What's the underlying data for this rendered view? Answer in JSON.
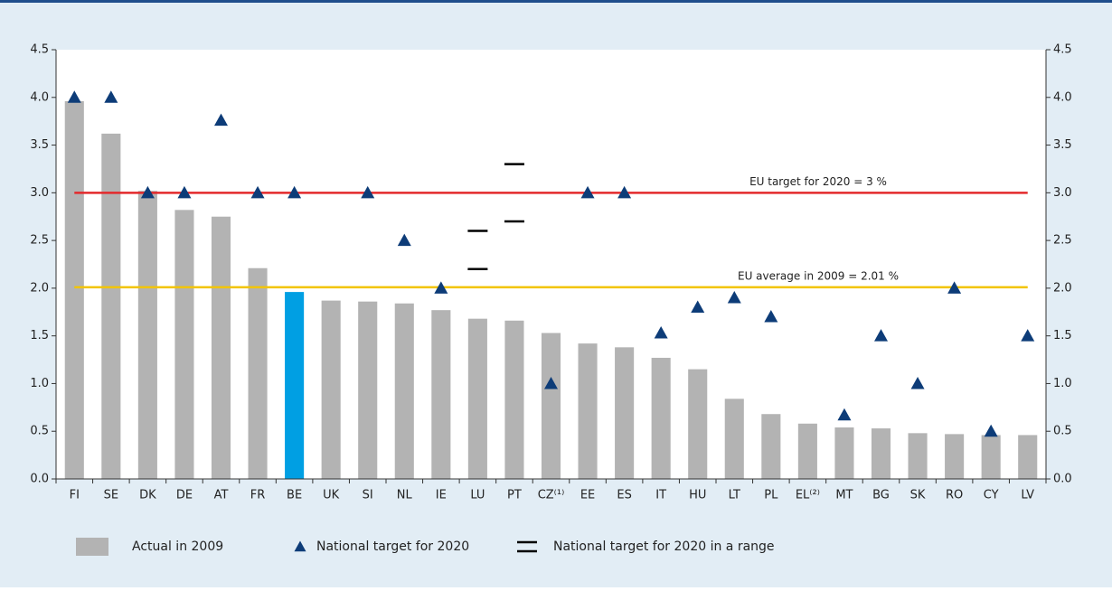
{
  "chart_data": {
    "type": "bar",
    "categories": [
      "FI",
      "SE",
      "DK",
      "DE",
      "AT",
      "FR",
      "BE",
      "UK",
      "SI",
      "NL",
      "IE",
      "LU",
      "PT",
      "CZ⁽¹⁾",
      "EE",
      "ES",
      "IT",
      "HU",
      "LT",
      "PL",
      "EL⁽²⁾",
      "MT",
      "BG",
      "SK",
      "RO",
      "CY",
      "LV"
    ],
    "series": [
      {
        "name": "Actual in 2009",
        "color": "#b3b3b3",
        "colors": [
          "#b3b3b3",
          "#b3b3b3",
          "#b3b3b3",
          "#b3b3b3",
          "#b3b3b3",
          "#b3b3b3",
          "#009fe3",
          "#b3b3b3",
          "#b3b3b3",
          "#b3b3b3",
          "#b3b3b3",
          "#b3b3b3",
          "#b3b3b3",
          "#b3b3b3",
          "#b3b3b3",
          "#b3b3b3",
          "#b3b3b3",
          "#b3b3b3",
          "#b3b3b3",
          "#b3b3b3",
          "#b3b3b3",
          "#b3b3b3",
          "#b3b3b3",
          "#b3b3b3",
          "#b3b3b3",
          "#b3b3b3",
          "#b3b3b3"
        ],
        "values": [
          3.96,
          3.62,
          3.02,
          2.82,
          2.75,
          2.21,
          1.96,
          1.87,
          1.86,
          1.84,
          1.77,
          1.68,
          1.66,
          1.53,
          1.42,
          1.38,
          1.27,
          1.15,
          0.84,
          0.68,
          0.58,
          0.54,
          0.53,
          0.48,
          0.47,
          0.46,
          0.46
        ]
      },
      {
        "name": "National target for 2020",
        "color": "#0d3c78",
        "values": [
          4.0,
          4.0,
          3.0,
          3.0,
          3.76,
          3.0,
          3.0,
          null,
          3.0,
          2.5,
          2.0,
          null,
          null,
          1.0,
          3.0,
          3.0,
          1.53,
          1.8,
          1.9,
          1.7,
          null,
          0.67,
          1.5,
          1.0,
          2.0,
          0.5,
          1.5
        ]
      },
      {
        "name": "National target for 2020 in a range",
        "color": "#000000",
        "low": [
          null,
          null,
          null,
          null,
          null,
          null,
          null,
          null,
          null,
          null,
          null,
          2.2,
          2.7,
          null,
          null,
          null,
          null,
          null,
          null,
          null,
          null,
          null,
          null,
          null,
          null,
          null,
          null
        ],
        "high": [
          null,
          null,
          null,
          null,
          null,
          null,
          null,
          null,
          null,
          null,
          null,
          2.6,
          3.3,
          null,
          null,
          null,
          null,
          null,
          null,
          null,
          null,
          null,
          null,
          null,
          null,
          null,
          null
        ]
      }
    ],
    "reference_lines": [
      {
        "value": 3,
        "label": "EU target for 2020 = 3 %",
        "color": "#e3292b"
      },
      {
        "value": 2.01,
        "label": "EU average in 2009 = 2.01 %",
        "color": "#f2c400"
      }
    ],
    "ylim": [
      0,
      4.5
    ],
    "yticks": [
      {
        "value": 0,
        "label": "0.0"
      },
      0.5,
      {
        "value": 1,
        "label": "1.0"
      },
      1.5,
      {
        "value": 2,
        "label": "2.0"
      },
      2.5,
      {
        "value": 3,
        "label": "3.0"
      },
      3.5,
      {
        "value": 4,
        "label": "4.0"
      },
      4.5
    ],
    "grid": false
  }
}
